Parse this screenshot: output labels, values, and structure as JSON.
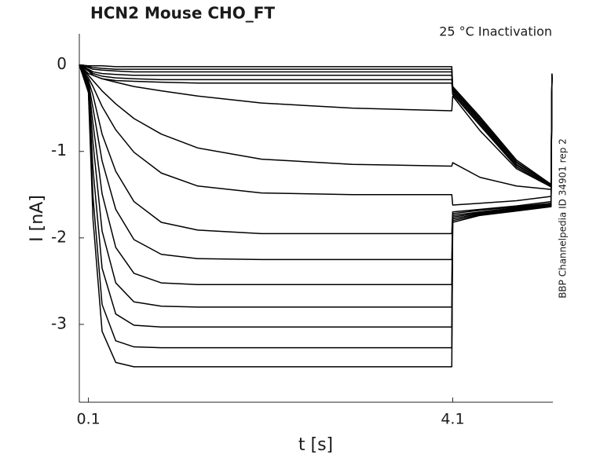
{
  "chart_data": {
    "type": "line",
    "title": "HCN2  Mouse  CHO_FT",
    "annotation": "25 °C  Inactivation",
    "side_note": "BBP Channelpedia ID 34901 rep 2",
    "x_label": "t [s]",
    "y_label": "I [nA]",
    "color": "#000000",
    "xlim": [
      0,
      5.2
    ],
    "ylim": [
      -3.9,
      0.36
    ],
    "xticks": [
      0.1,
      4.1
    ],
    "yticks": [
      -3,
      -2,
      -1,
      0
    ],
    "x": [
      0,
      0.1,
      0.15,
      0.25,
      0.4,
      0.6,
      0.9,
      1.3,
      2.0,
      3.0,
      4.09,
      4.1,
      4.4,
      4.8,
      5.18,
      5.19
    ],
    "series": [
      {
        "values": [
          0,
          -0.01,
          -0.01,
          -0.01,
          -0.02,
          -0.02,
          -0.02,
          -0.02,
          -0.02,
          -0.02,
          -0.02,
          -0.25,
          -0.6,
          -1.1,
          -1.38,
          -0.12
        ]
      },
      {
        "values": [
          0,
          -0.02,
          -0.03,
          -0.04,
          -0.05,
          -0.05,
          -0.05,
          -0.05,
          -0.05,
          -0.05,
          -0.05,
          -0.27,
          -0.62,
          -1.12,
          -1.39,
          -0.13
        ]
      },
      {
        "values": [
          0,
          -0.03,
          -0.05,
          -0.06,
          -0.07,
          -0.08,
          -0.08,
          -0.08,
          -0.08,
          -0.08,
          -0.08,
          -0.28,
          -0.64,
          -1.13,
          -1.39,
          -0.14
        ]
      },
      {
        "values": [
          0,
          -0.05,
          -0.08,
          -0.1,
          -0.11,
          -0.12,
          -0.12,
          -0.12,
          -0.12,
          -0.12,
          -0.12,
          -0.3,
          -0.66,
          -1.15,
          -1.4,
          -0.15
        ]
      },
      {
        "values": [
          0,
          -0.06,
          -0.1,
          -0.13,
          -0.15,
          -0.16,
          -0.17,
          -0.17,
          -0.17,
          -0.17,
          -0.17,
          -0.32,
          -0.68,
          -1.16,
          -1.4,
          -0.16
        ]
      },
      {
        "values": [
          0,
          -0.07,
          -0.12,
          -0.16,
          -0.18,
          -0.19,
          -0.2,
          -0.21,
          -0.21,
          -0.21,
          -0.21,
          -0.34,
          -0.7,
          -1.18,
          -1.41,
          -0.17
        ]
      },
      {
        "values": [
          0,
          -0.1,
          -0.12,
          -0.16,
          -0.2,
          -0.25,
          -0.3,
          -0.36,
          -0.44,
          -0.5,
          -0.53,
          -0.36,
          -0.76,
          -1.2,
          -1.41,
          -0.16
        ]
      },
      {
        "values": [
          0,
          -0.12,
          -0.18,
          -0.3,
          -0.45,
          -0.62,
          -0.8,
          -0.96,
          -1.09,
          -1.15,
          -1.17,
          -1.13,
          -1.3,
          -1.4,
          -1.44,
          -0.15
        ]
      },
      {
        "values": [
          0,
          -0.15,
          -0.25,
          -0.48,
          -0.75,
          -1.01,
          -1.25,
          -1.4,
          -1.48,
          -1.5,
          -1.5,
          -1.62,
          -1.6,
          -1.57,
          -1.52,
          -0.14
        ]
      },
      {
        "values": [
          0,
          -0.18,
          -0.35,
          -0.8,
          -1.23,
          -1.58,
          -1.82,
          -1.91,
          -1.95,
          -1.95,
          -1.95,
          -1.7,
          -1.67,
          -1.63,
          -1.58,
          -0.13
        ]
      },
      {
        "values": [
          0,
          -0.2,
          -0.5,
          -1.11,
          -1.67,
          -2.02,
          -2.19,
          -2.24,
          -2.25,
          -2.25,
          -2.25,
          -1.72,
          -1.68,
          -1.64,
          -1.6,
          -0.12
        ]
      },
      {
        "values": [
          0,
          -0.22,
          -0.68,
          -1.49,
          -2.11,
          -2.41,
          -2.52,
          -2.54,
          -2.54,
          -2.54,
          -2.54,
          -1.74,
          -1.7,
          -1.65,
          -1.61,
          -0.12
        ]
      },
      {
        "values": [
          0,
          -0.25,
          -0.9,
          -1.92,
          -2.52,
          -2.74,
          -2.79,
          -2.8,
          -2.8,
          -2.8,
          -2.8,
          -1.76,
          -1.71,
          -1.66,
          -1.62,
          -0.11
        ]
      },
      {
        "values": [
          0,
          -0.28,
          -1.2,
          -2.35,
          -2.88,
          -3.01,
          -3.03,
          -3.03,
          -3.03,
          -3.03,
          -3.03,
          -1.78,
          -1.72,
          -1.67,
          -1.63,
          -0.11
        ]
      },
      {
        "values": [
          0,
          -0.3,
          -1.52,
          -2.77,
          -3.19,
          -3.26,
          -3.27,
          -3.27,
          -3.27,
          -3.27,
          -3.27,
          -1.8,
          -1.73,
          -1.68,
          -1.63,
          -0.1
        ]
      },
      {
        "values": [
          0,
          -0.32,
          -1.78,
          -3.08,
          -3.44,
          -3.49,
          -3.49,
          -3.49,
          -3.49,
          -3.49,
          -3.49,
          -1.82,
          -1.74,
          -1.69,
          -1.64,
          -0.1
        ]
      }
    ]
  }
}
